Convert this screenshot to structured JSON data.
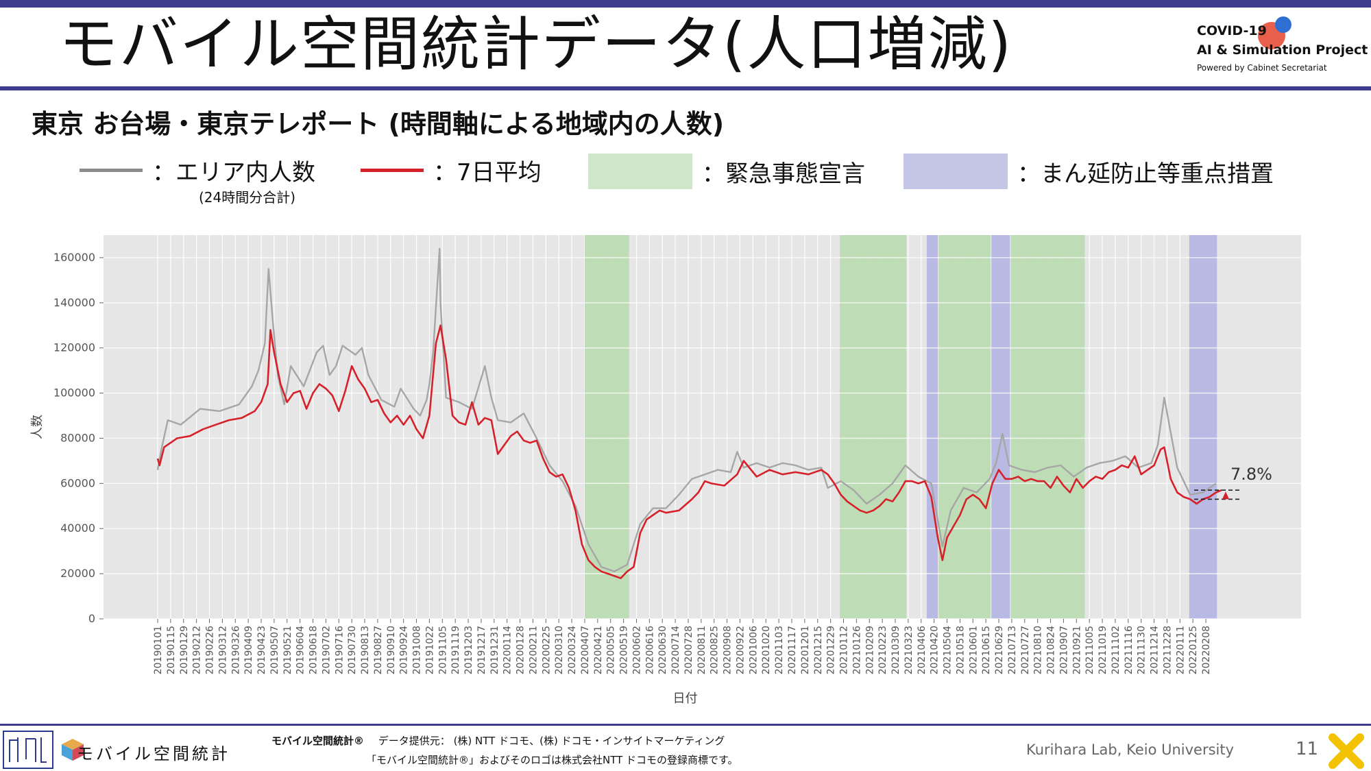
{
  "page": {
    "title": "モバイル空間統計データ(人口増減)",
    "project_line1": "COVID-19",
    "project_line2": "AI & Simulation Project",
    "project_line3": "Powered by Cabinet Secretariat",
    "subtitle": "東京 お台場・東京テレポート (時間軸による地域内の人数)",
    "page_number": "11",
    "credit": "Kurihara Lab, Keio University",
    "footer_brand": "モバイル空間統計",
    "footer_brand_mark": "モバイル空間統計®",
    "footer_provider": "データ提供元： (株) NTT ドコモ、(株) ドコモ・インサイトマーケティング",
    "footer_trademark": "「モバイル空間統計®」およびそのロゴは株式会社NTT ドコモの登録商標です。"
  },
  "legend": {
    "area_label": "：エリア内人数",
    "area_sub": "(24時間分合計)",
    "avg_label": "：7日平均",
    "emergency_label": "：緊急事態宣言",
    "priority_label": "：まん延防止等重点措置"
  },
  "colors": {
    "accent": "#3d3b8e",
    "raw_line": "#a6a6a6",
    "avg_line": "#d6202a",
    "emergency": "#bcdcb3",
    "priority": "#b5b7e3",
    "plot_bg": "#e6e6e6"
  },
  "chart_data": {
    "type": "line",
    "xlabel": "日付",
    "ylabel": "人数",
    "ylim": [
      0,
      170000
    ],
    "yticks": [
      0,
      20000,
      40000,
      60000,
      80000,
      100000,
      120000,
      140000,
      160000
    ],
    "x_range": [
      "2019-01-01",
      "2022-02-25"
    ],
    "x_tick_labels": [
      "20190101",
      "20190115",
      "20190129",
      "20190212",
      "20190226",
      "20190312",
      "20190326",
      "20190409",
      "20190423",
      "20190507",
      "20190521",
      "20190604",
      "20190618",
      "20190702",
      "20190716",
      "20190730",
      "20190813",
      "20190827",
      "20190910",
      "20190924",
      "20191008",
      "20191022",
      "20191105",
      "20191119",
      "20191203",
      "20191217",
      "20191231",
      "20200114",
      "20200128",
      "20200211",
      "20200225",
      "20200310",
      "20200324",
      "20200407",
      "20200421",
      "20200505",
      "20200519",
      "20200602",
      "20200616",
      "20200630",
      "20200714",
      "20200728",
      "20200811",
      "20200825",
      "20200908",
      "20200922",
      "20201006",
      "20201020",
      "20201103",
      "20201117",
      "20201201",
      "20201215",
      "20201229",
      "20210112",
      "20210126",
      "20210209",
      "20210223",
      "20210309",
      "20210323",
      "20210406",
      "20210420",
      "20210504",
      "20210518",
      "20210601",
      "20210615",
      "20210629",
      "20210713",
      "20210727",
      "20210810",
      "20210824",
      "20210907",
      "20210921",
      "20211005",
      "20211019",
      "20211102",
      "20211116",
      "20211130",
      "20211214",
      "20211228",
      "20220111",
      "20220125",
      "20220208"
    ],
    "annotation": "7.8%",
    "shaded_periods": [
      {
        "kind": "emergency",
        "start": "2020-04-07",
        "end": "2020-05-25"
      },
      {
        "kind": "emergency",
        "start": "2021-01-08",
        "end": "2021-03-21"
      },
      {
        "kind": "priority",
        "start": "2021-04-12",
        "end": "2021-04-24"
      },
      {
        "kind": "emergency",
        "start": "2021-04-25",
        "end": "2021-06-20"
      },
      {
        "kind": "priority",
        "start": "2021-06-21",
        "end": "2021-07-11"
      },
      {
        "kind": "emergency",
        "start": "2021-07-12",
        "end": "2021-09-30"
      },
      {
        "kind": "priority",
        "start": "2022-01-21",
        "end": "2022-02-20"
      }
    ],
    "series": [
      {
        "name": "エリア内人数",
        "x": [
          "2019-01-01",
          "2019-01-05",
          "2019-01-12",
          "2019-01-26",
          "2019-02-16",
          "2019-03-09",
          "2019-03-30",
          "2019-04-13",
          "2019-04-20",
          "2019-04-27",
          "2019-05-01",
          "2019-05-06",
          "2019-05-11",
          "2019-05-18",
          "2019-05-25",
          "2019-06-08",
          "2019-06-22",
          "2019-06-29",
          "2019-07-06",
          "2019-07-13",
          "2019-07-20",
          "2019-08-03",
          "2019-08-10",
          "2019-08-17",
          "2019-08-31",
          "2019-09-14",
          "2019-09-21",
          "2019-10-05",
          "2019-10-12",
          "2019-10-19",
          "2019-10-22",
          "2019-10-26",
          "2019-11-02",
          "2019-11-03",
          "2019-11-09",
          "2019-11-23",
          "2019-12-07",
          "2019-12-21",
          "2019-12-28",
          "2020-01-04",
          "2020-01-18",
          "2020-02-01",
          "2020-02-15",
          "2020-02-29",
          "2020-03-14",
          "2020-03-28",
          "2020-04-11",
          "2020-04-25",
          "2020-05-09",
          "2020-05-23",
          "2020-06-06",
          "2020-06-20",
          "2020-07-04",
          "2020-07-18",
          "2020-08-01",
          "2020-08-15",
          "2020-08-29",
          "2020-09-12",
          "2020-09-19",
          "2020-09-26",
          "2020-10-10",
          "2020-10-24",
          "2020-11-07",
          "2020-11-21",
          "2020-12-05",
          "2020-12-19",
          "2020-12-26",
          "2021-01-09",
          "2021-01-23",
          "2021-02-06",
          "2021-02-20",
          "2021-03-06",
          "2021-03-20",
          "2021-04-03",
          "2021-04-17",
          "2021-04-29",
          "2021-05-08",
          "2021-05-22",
          "2021-06-05",
          "2021-06-19",
          "2021-06-26",
          "2021-07-03",
          "2021-07-10",
          "2021-07-24",
          "2021-08-07",
          "2021-08-21",
          "2021-09-04",
          "2021-09-18",
          "2021-10-02",
          "2021-10-16",
          "2021-10-30",
          "2021-11-13",
          "2021-11-27",
          "2021-12-11",
          "2021-12-18",
          "2021-12-25",
          "2022-01-08",
          "2022-01-22",
          "2022-02-05",
          "2022-02-19"
        ],
        "values": [
          66000,
          75000,
          88000,
          86000,
          93000,
          92000,
          95000,
          103000,
          110000,
          122000,
          155000,
          130000,
          108000,
          95000,
          112000,
          103000,
          118000,
          121000,
          108000,
          112000,
          121000,
          117000,
          120000,
          108000,
          97000,
          94000,
          102000,
          93000,
          90000,
          97000,
          104000,
          118000,
          164000,
          140000,
          98000,
          96000,
          93000,
          112000,
          98000,
          88000,
          87000,
          91000,
          80000,
          68000,
          61000,
          50000,
          33000,
          23000,
          21000,
          24000,
          42000,
          49000,
          49000,
          55000,
          62000,
          64000,
          66000,
          65000,
          74000,
          67000,
          69000,
          67000,
          69000,
          68000,
          66000,
          67000,
          58000,
          61000,
          57000,
          51000,
          55000,
          60000,
          68000,
          63000,
          60000,
          32000,
          48000,
          58000,
          56000,
          62000,
          69000,
          82000,
          68000,
          66000,
          65000,
          67000,
          68000,
          63000,
          67000,
          69000,
          70000,
          72000,
          67000,
          69000,
          77000,
          98000,
          67000,
          55000,
          56000,
          60000
        ]
      },
      {
        "name": "7日平均",
        "x": [
          "2019-01-01",
          "2019-01-03",
          "2019-01-08",
          "2019-01-22",
          "2019-02-05",
          "2019-02-19",
          "2019-03-05",
          "2019-03-19",
          "2019-04-02",
          "2019-04-16",
          "2019-04-23",
          "2019-04-30",
          "2019-05-03",
          "2019-05-07",
          "2019-05-14",
          "2019-05-21",
          "2019-05-28",
          "2019-06-04",
          "2019-06-11",
          "2019-06-18",
          "2019-06-25",
          "2019-07-02",
          "2019-07-09",
          "2019-07-16",
          "2019-07-23",
          "2019-07-30",
          "2019-08-06",
          "2019-08-13",
          "2019-08-20",
          "2019-08-27",
          "2019-09-03",
          "2019-09-10",
          "2019-09-17",
          "2019-09-24",
          "2019-10-01",
          "2019-10-08",
          "2019-10-15",
          "2019-10-22",
          "2019-10-29",
          "2019-11-03",
          "2019-11-09",
          "2019-11-16",
          "2019-11-23",
          "2019-11-30",
          "2019-12-07",
          "2019-12-14",
          "2019-12-21",
          "2019-12-28",
          "2020-01-04",
          "2020-01-11",
          "2020-01-18",
          "2020-01-25",
          "2020-02-01",
          "2020-02-08",
          "2020-02-15",
          "2020-02-22",
          "2020-02-29",
          "2020-03-07",
          "2020-03-14",
          "2020-03-21",
          "2020-03-28",
          "2020-04-04",
          "2020-04-11",
          "2020-04-18",
          "2020-04-25",
          "2020-05-02",
          "2020-05-09",
          "2020-05-16",
          "2020-05-23",
          "2020-05-30",
          "2020-06-06",
          "2020-06-13",
          "2020-06-20",
          "2020-06-27",
          "2020-07-04",
          "2020-07-18",
          "2020-08-01",
          "2020-08-08",
          "2020-08-15",
          "2020-08-22",
          "2020-09-05",
          "2020-09-19",
          "2020-09-26",
          "2020-10-10",
          "2020-10-24",
          "2020-11-07",
          "2020-11-21",
          "2020-12-05",
          "2020-12-19",
          "2020-12-26",
          "2021-01-02",
          "2021-01-09",
          "2021-01-16",
          "2021-01-23",
          "2021-01-30",
          "2021-02-06",
          "2021-02-13",
          "2021-02-20",
          "2021-02-27",
          "2021-03-06",
          "2021-03-13",
          "2021-03-20",
          "2021-03-27",
          "2021-04-03",
          "2021-04-10",
          "2021-04-17",
          "2021-04-24",
          "2021-04-29",
          "2021-05-04",
          "2021-05-11",
          "2021-05-18",
          "2021-05-25",
          "2021-06-01",
          "2021-06-08",
          "2021-06-15",
          "2021-06-22",
          "2021-06-29",
          "2021-07-06",
          "2021-07-13",
          "2021-07-20",
          "2021-07-27",
          "2021-08-03",
          "2021-08-10",
          "2021-08-17",
          "2021-08-24",
          "2021-08-31",
          "2021-09-07",
          "2021-09-14",
          "2021-09-21",
          "2021-09-28",
          "2021-10-05",
          "2021-10-12",
          "2021-10-19",
          "2021-10-26",
          "2021-11-02",
          "2021-11-09",
          "2021-11-16",
          "2021-11-23",
          "2021-11-30",
          "2021-12-07",
          "2021-12-14",
          "2021-12-21",
          "2021-12-25",
          "2022-01-01",
          "2022-01-08",
          "2022-01-15",
          "2022-01-22",
          "2022-01-29",
          "2022-02-05",
          "2022-02-12",
          "2022-02-19",
          "2022-02-25"
        ],
        "values": [
          71000,
          68000,
          76000,
          80000,
          81000,
          84000,
          86000,
          88000,
          89000,
          92000,
          96000,
          104000,
          128000,
          118000,
          104000,
          96000,
          100000,
          101000,
          93000,
          100000,
          104000,
          102000,
          99000,
          92000,
          101000,
          112000,
          106000,
          102000,
          96000,
          97000,
          91000,
          87000,
          90000,
          86000,
          90000,
          84000,
          80000,
          90000,
          122000,
          130000,
          115000,
          90000,
          87000,
          86000,
          96000,
          86000,
          89000,
          88000,
          73000,
          77000,
          81000,
          83000,
          79000,
          78000,
          79000,
          71000,
          65000,
          63000,
          64000,
          58000,
          48000,
          33000,
          26000,
          23000,
          21000,
          20000,
          19000,
          18000,
          21000,
          23000,
          38000,
          44000,
          46000,
          48000,
          47000,
          48000,
          53000,
          56000,
          61000,
          60000,
          59000,
          64000,
          70000,
          63000,
          66000,
          64000,
          65000,
          64000,
          66000,
          64000,
          60000,
          55000,
          52000,
          50000,
          48000,
          47000,
          48000,
          50000,
          53000,
          52000,
          56000,
          61000,
          61000,
          60000,
          61000,
          54000,
          36000,
          26000,
          36000,
          41000,
          46000,
          53000,
          55000,
          53000,
          49000,
          60000,
          66000,
          62000,
          62000,
          63000,
          61000,
          62000,
          61000,
          61000,
          58000,
          63000,
          59000,
          56000,
          62000,
          58000,
          61000,
          63000,
          62000,
          65000,
          66000,
          68000,
          67000,
          72000,
          64000,
          66000,
          68000,
          75000,
          76000,
          62000,
          56000,
          54000,
          53000,
          51000,
          53000,
          54000,
          56000,
          57000
        ]
      }
    ]
  }
}
